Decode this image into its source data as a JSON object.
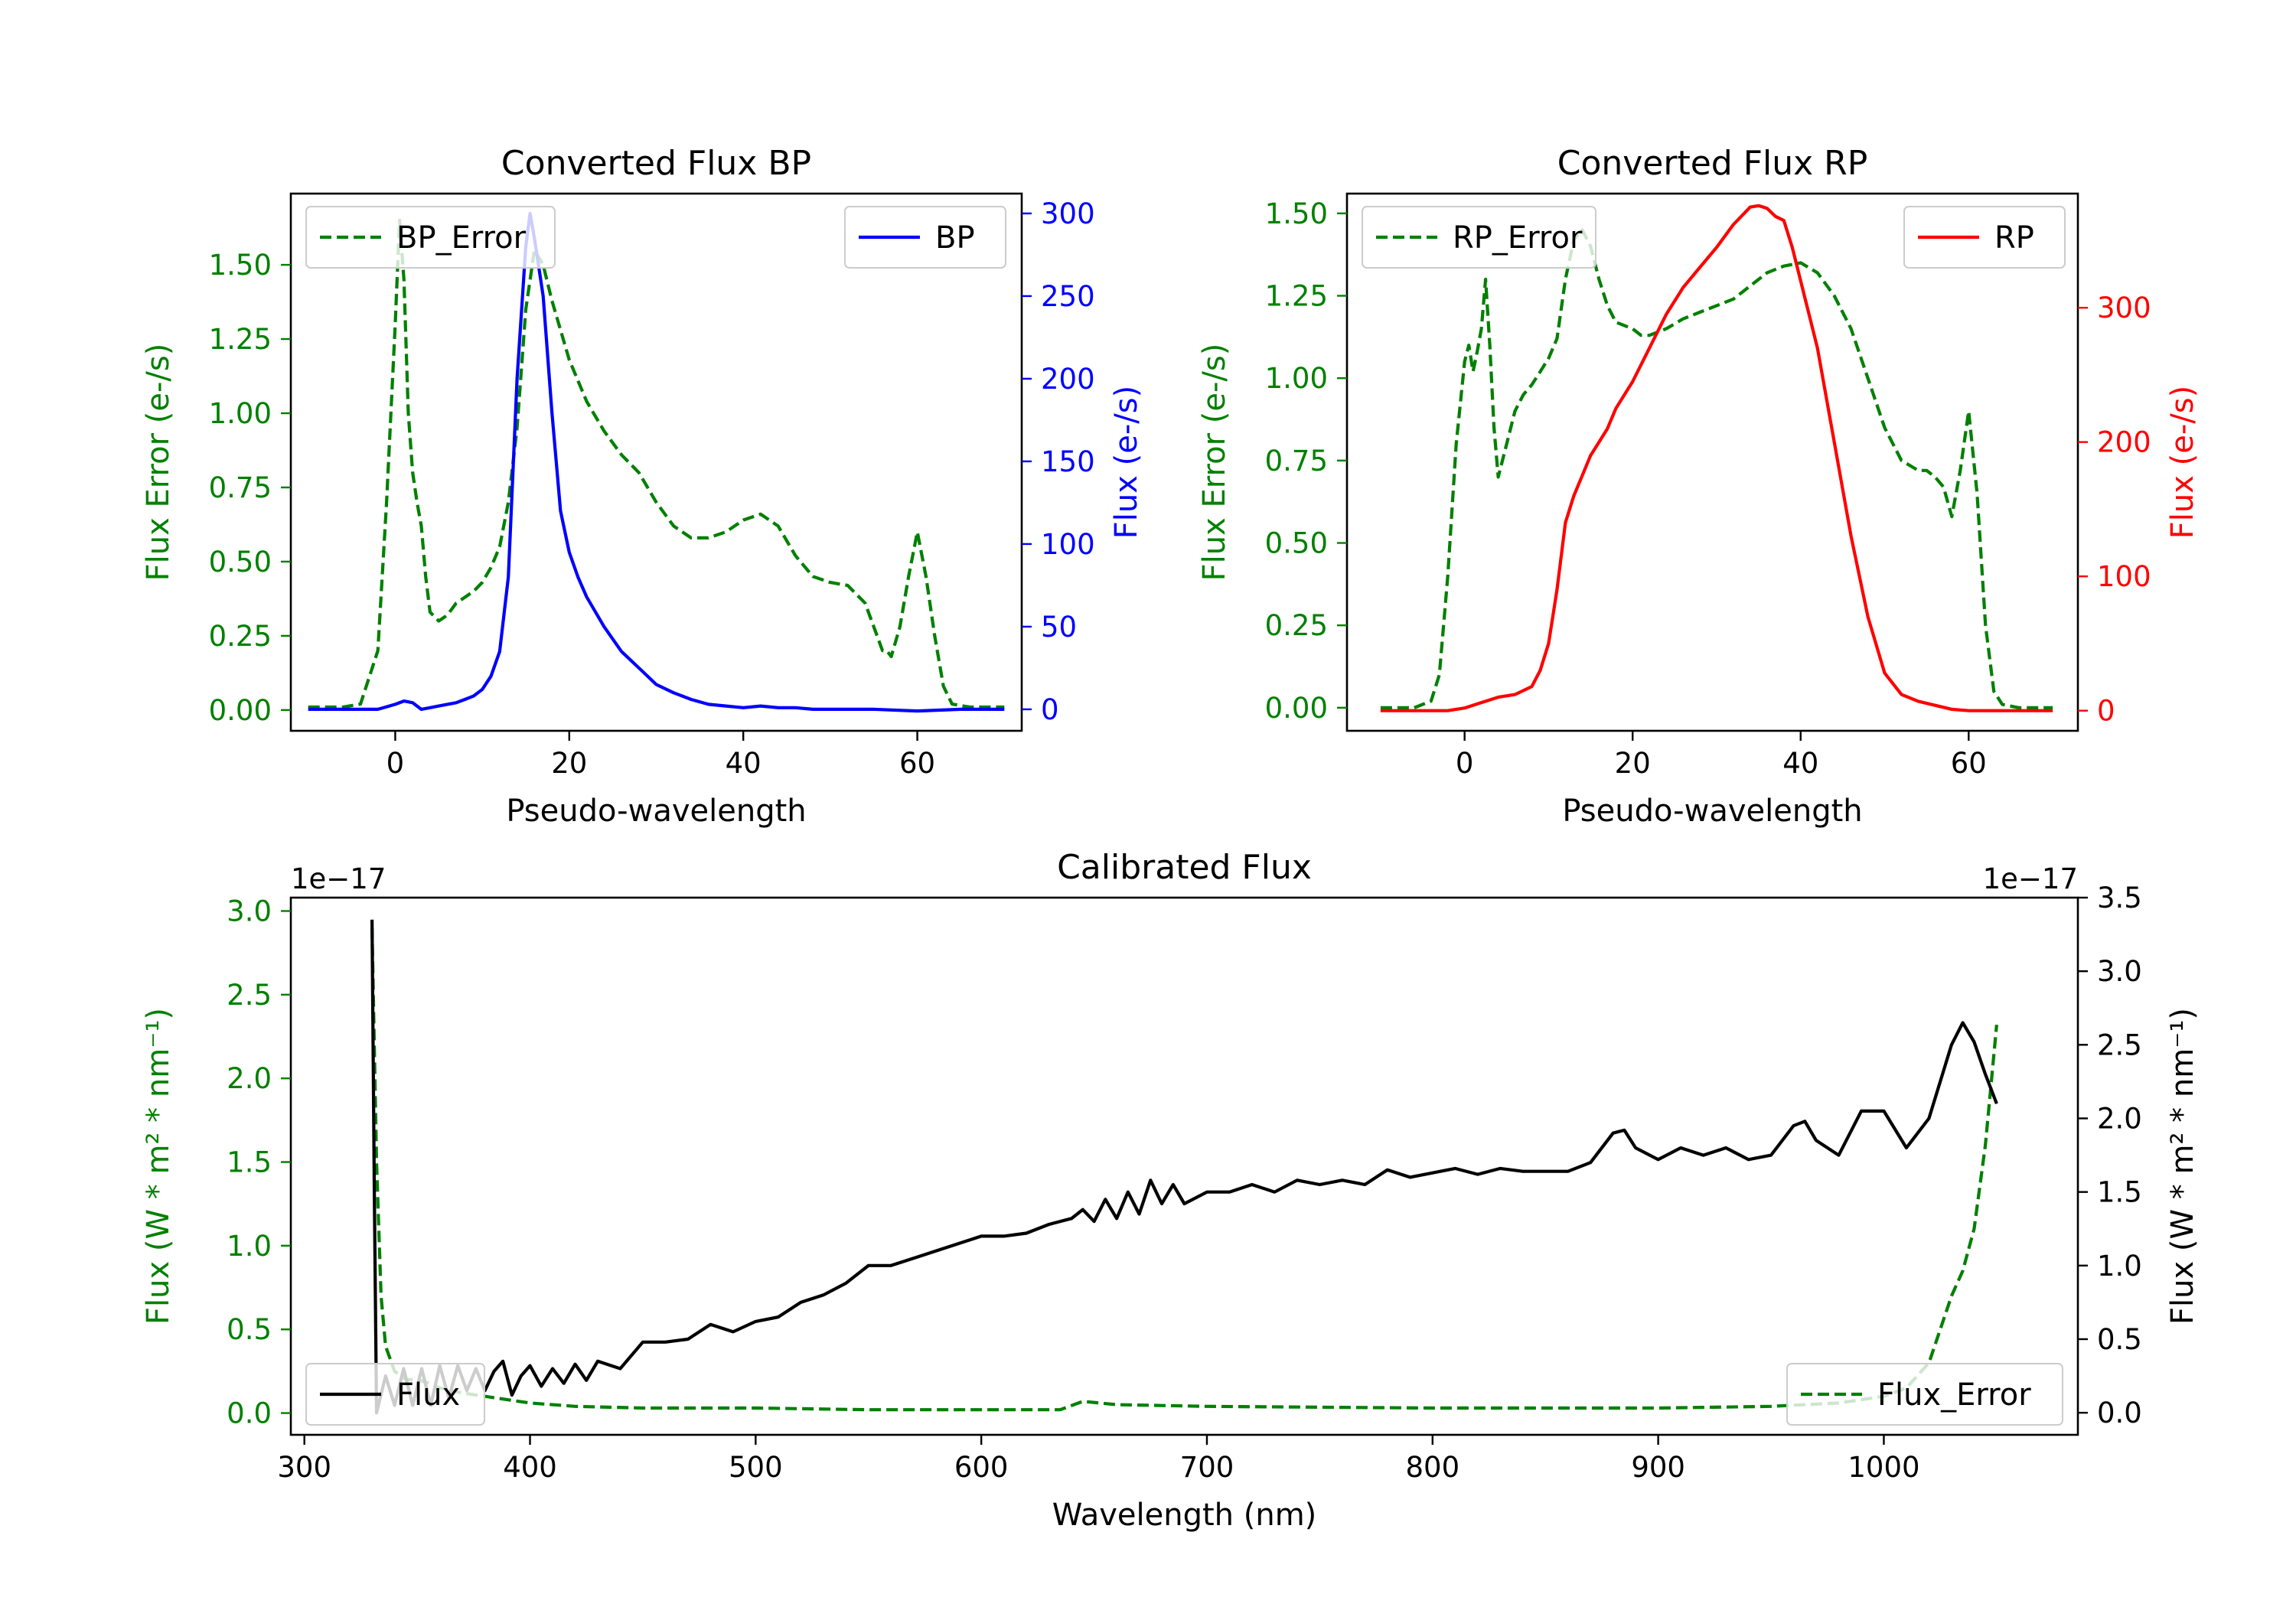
{
  "colors": {
    "green": "#008000",
    "blue": "#0000ff",
    "red": "#ff0000",
    "black": "#000000"
  },
  "chart_data": [
    {
      "id": "bp",
      "type": "line",
      "title": "Converted Flux BP",
      "xlabel": "Pseudo-wavelength",
      "ylabel_left": "Flux Error (e-/s)",
      "ylabel_right": "Flux (e-/s)",
      "xlim": [
        -12,
        72
      ],
      "ylim_left": [
        -0.07,
        1.74
      ],
      "ylim_right": [
        -13,
        312
      ],
      "x_ticks": [
        0,
        20,
        40,
        60
      ],
      "y_ticks_left": [
        "0.00",
        "0.25",
        "0.50",
        "0.75",
        "1.00",
        "1.25",
        "1.50"
      ],
      "y_ticks_right": [
        0,
        50,
        100,
        150,
        200,
        250,
        300
      ],
      "legend_left": {
        "label": "BP_Error",
        "position": "upper-left"
      },
      "legend_right": {
        "label": "BP",
        "position": "upper-right"
      },
      "series": [
        {
          "name": "BP_Error",
          "axis": "left",
          "color": "green",
          "dashed": true,
          "x": [
            -10,
            -6,
            -4,
            -2,
            -1,
            0,
            0.5,
            1,
            1.5,
            2,
            2.5,
            3,
            3.5,
            4,
            5,
            6,
            7,
            8,
            9,
            10,
            11,
            12,
            13,
            14,
            15,
            16,
            17,
            18,
            20,
            22,
            24,
            26,
            28,
            30,
            32,
            34,
            36,
            38,
            40,
            42,
            44,
            46,
            48,
            50,
            52,
            54,
            56,
            56.5,
            57,
            58,
            59,
            60,
            61,
            62,
            63,
            64,
            66,
            68,
            70
          ],
          "y": [
            0.01,
            0.01,
            0.02,
            0.2,
            0.7,
            1.3,
            1.65,
            1.45,
            1.0,
            0.8,
            0.7,
            0.62,
            0.45,
            0.33,
            0.3,
            0.32,
            0.36,
            0.38,
            0.4,
            0.43,
            0.48,
            0.55,
            0.7,
            0.95,
            1.35,
            1.55,
            1.5,
            1.38,
            1.18,
            1.04,
            0.94,
            0.86,
            0.8,
            0.7,
            0.62,
            0.58,
            0.58,
            0.6,
            0.64,
            0.66,
            0.62,
            0.52,
            0.45,
            0.43,
            0.42,
            0.36,
            0.2,
            0.2,
            0.18,
            0.28,
            0.45,
            0.6,
            0.45,
            0.25,
            0.08,
            0.02,
            0.01,
            0.01,
            0.01
          ]
        },
        {
          "name": "BP",
          "axis": "right",
          "color": "blue",
          "dashed": false,
          "x": [
            -10,
            -6,
            -4,
            -2,
            0,
            1,
            2,
            3,
            4,
            5,
            6,
            7,
            8,
            9,
            10,
            11,
            12,
            13,
            14,
            15,
            15.5,
            16,
            17,
            18,
            19,
            20,
            21,
            22,
            24,
            26,
            28,
            30,
            32,
            34,
            36,
            38,
            40,
            42,
            44,
            46,
            48,
            50,
            55,
            60,
            65,
            70
          ],
          "y": [
            0,
            0,
            0,
            0,
            3,
            5,
            4,
            0,
            1,
            2,
            3,
            4,
            6,
            8,
            12,
            20,
            35,
            80,
            200,
            280,
            300,
            285,
            250,
            180,
            120,
            95,
            80,
            68,
            50,
            35,
            25,
            15,
            10,
            6,
            3,
            2,
            1,
            2,
            1,
            1,
            0,
            0,
            0,
            -1,
            0,
            0
          ]
        }
      ]
    },
    {
      "id": "rp",
      "type": "line",
      "title": "Converted Flux RP",
      "xlabel": "Pseudo-wavelength",
      "ylabel_left": "Flux Error (e-/s)",
      "ylabel_right": "Flux (e-/s)",
      "xlim": [
        -14,
        73
      ],
      "ylim_left": [
        -0.07,
        1.56
      ],
      "ylim_right": [
        -15,
        385
      ],
      "x_ticks": [
        0,
        20,
        40,
        60
      ],
      "y_ticks_left": [
        "0.00",
        "0.25",
        "0.50",
        "0.75",
        "1.00",
        "1.25",
        "1.50"
      ],
      "y_ticks_right": [
        0,
        100,
        200,
        300
      ],
      "legend_left": {
        "label": "RP_Error",
        "position": "upper-left"
      },
      "legend_right": {
        "label": "RP",
        "position": "upper-right"
      },
      "series": [
        {
          "name": "RP_Error",
          "axis": "left",
          "color": "green",
          "dashed": true,
          "x": [
            -10,
            -6,
            -4,
            -3,
            -2,
            -1,
            0,
            0.5,
            1,
            1.5,
            2,
            2.5,
            3,
            3.5,
            4,
            5,
            6,
            7,
            8,
            9,
            10,
            11,
            12,
            13,
            14,
            15,
            16,
            17,
            18,
            19,
            20,
            21,
            22,
            24,
            26,
            28,
            30,
            32,
            34,
            36,
            38,
            40,
            42,
            44,
            46,
            48,
            50,
            52,
            54,
            55,
            56,
            57,
            58,
            59,
            60,
            61,
            62,
            63,
            64,
            66,
            68,
            70
          ],
          "y": [
            0,
            0,
            0.02,
            0.1,
            0.4,
            0.8,
            1.05,
            1.1,
            1.02,
            1.08,
            1.15,
            1.3,
            1.1,
            0.85,
            0.7,
            0.8,
            0.9,
            0.95,
            0.98,
            1.02,
            1.06,
            1.12,
            1.3,
            1.42,
            1.45,
            1.4,
            1.3,
            1.22,
            1.17,
            1.16,
            1.15,
            1.13,
            1.13,
            1.15,
            1.18,
            1.2,
            1.22,
            1.24,
            1.28,
            1.32,
            1.34,
            1.35,
            1.32,
            1.25,
            1.15,
            1.0,
            0.85,
            0.75,
            0.72,
            0.72,
            0.7,
            0.67,
            0.58,
            0.72,
            0.9,
            0.65,
            0.25,
            0.05,
            0.01,
            0,
            0,
            0
          ]
        },
        {
          "name": "RP",
          "axis": "right",
          "color": "red",
          "dashed": false,
          "x": [
            -10,
            -6,
            -4,
            -2,
            0,
            2,
            4,
            6,
            8,
            9,
            10,
            11,
            12,
            13,
            14,
            15,
            16,
            17,
            18,
            19,
            20,
            22,
            24,
            26,
            28,
            30,
            32,
            34,
            35,
            36,
            37,
            38,
            39,
            40,
            42,
            44,
            46,
            48,
            50,
            52,
            54,
            56,
            58,
            60,
            65,
            70
          ],
          "y": [
            0,
            0,
            0,
            0,
            2,
            6,
            10,
            12,
            18,
            30,
            50,
            90,
            140,
            160,
            175,
            190,
            200,
            210,
            225,
            235,
            245,
            270,
            295,
            315,
            330,
            345,
            362,
            375,
            376,
            374,
            368,
            365,
            345,
            320,
            270,
            200,
            130,
            70,
            28,
            12,
            7,
            4,
            1,
            0,
            0,
            0
          ]
        }
      ]
    },
    {
      "id": "calibrated",
      "type": "line",
      "title": "Calibrated Flux",
      "xlabel": "Wavelength (nm)",
      "ylabel_left": "Flux (W * m² * nm⁻¹)",
      "ylabel_right": "Flux (W * m² * nm⁻¹)",
      "offset_left": "1e−17",
      "offset_right": "1e−17",
      "xlim": [
        294,
        1086
      ],
      "ylim_left": [
        -0.13,
        3.08
      ],
      "ylim_right": [
        -0.15,
        3.5
      ],
      "x_ticks": [
        300,
        400,
        500,
        600,
        700,
        800,
        900,
        1000
      ],
      "y_ticks_left": [
        "0.0",
        "0.5",
        "1.0",
        "1.5",
        "2.0",
        "2.5",
        "3.0"
      ],
      "y_ticks_right": [
        "0.0",
        "0.5",
        "1.0",
        "1.5",
        "2.0",
        "2.5",
        "3.0",
        "3.5"
      ],
      "legend_left": {
        "label": "Flux",
        "position": "lower-left"
      },
      "legend_right": {
        "label": "Flux_Error",
        "position": "lower-right"
      },
      "series": [
        {
          "name": "Flux_Error",
          "axis": "left",
          "color": "green",
          "dashed": true,
          "x": [
            330,
            332,
            334,
            336,
            340,
            345,
            350,
            355,
            360,
            370,
            380,
            390,
            400,
            420,
            450,
            500,
            550,
            600,
            635,
            645,
            660,
            700,
            800,
            900,
            950,
            980,
            1000,
            1010,
            1020,
            1025,
            1030,
            1035,
            1040,
            1045,
            1050
          ],
          "y": [
            2.9,
            1.5,
            0.7,
            0.4,
            0.25,
            0.2,
            0.2,
            0.18,
            0.15,
            0.12,
            0.1,
            0.08,
            0.06,
            0.04,
            0.03,
            0.03,
            0.02,
            0.02,
            0.02,
            0.07,
            0.05,
            0.04,
            0.03,
            0.03,
            0.04,
            0.06,
            0.1,
            0.15,
            0.3,
            0.5,
            0.7,
            0.85,
            1.1,
            1.6,
            2.32
          ]
        },
        {
          "name": "Flux",
          "axis": "right",
          "color": "black",
          "dashed": false,
          "x": [
            330,
            331,
            332,
            336,
            340,
            344,
            348,
            352,
            356,
            360,
            364,
            368,
            372,
            376,
            380,
            384,
            388,
            392,
            396,
            400,
            405,
            410,
            415,
            420,
            425,
            430,
            440,
            450,
            460,
            470,
            480,
            490,
            500,
            510,
            520,
            530,
            540,
            550,
            560,
            570,
            580,
            590,
            600,
            610,
            620,
            630,
            640,
            645,
            650,
            655,
            660,
            665,
            670,
            675,
            680,
            685,
            690,
            700,
            710,
            720,
            730,
            740,
            750,
            760,
            770,
            780,
            790,
            800,
            810,
            820,
            830,
            840,
            850,
            860,
            870,
            880,
            885,
            890,
            900,
            910,
            920,
            930,
            940,
            950,
            960,
            965,
            970,
            980,
            990,
            1000,
            1010,
            1020,
            1030,
            1035,
            1040,
            1045,
            1050
          ],
          "y": [
            3.35,
            1.5,
            0.0,
            0.25,
            0.05,
            0.3,
            0.05,
            0.3,
            0.05,
            0.32,
            0.1,
            0.32,
            0.15,
            0.3,
            0.15,
            0.28,
            0.35,
            0.12,
            0.25,
            0.32,
            0.18,
            0.3,
            0.2,
            0.33,
            0.22,
            0.35,
            0.3,
            0.48,
            0.48,
            0.5,
            0.6,
            0.55,
            0.62,
            0.65,
            0.75,
            0.8,
            0.88,
            1.0,
            1.0,
            1.05,
            1.1,
            1.15,
            1.2,
            1.2,
            1.22,
            1.28,
            1.32,
            1.38,
            1.3,
            1.45,
            1.32,
            1.5,
            1.35,
            1.58,
            1.42,
            1.55,
            1.42,
            1.5,
            1.5,
            1.55,
            1.5,
            1.58,
            1.55,
            1.58,
            1.55,
            1.65,
            1.6,
            1.63,
            1.66,
            1.62,
            1.66,
            1.64,
            1.64,
            1.64,
            1.7,
            1.9,
            1.92,
            1.8,
            1.72,
            1.8,
            1.75,
            1.8,
            1.72,
            1.75,
            1.95,
            1.98,
            1.85,
            1.75,
            2.05,
            2.05,
            1.8,
            2.0,
            2.5,
            2.65,
            2.52,
            2.3,
            2.1
          ]
        }
      ]
    }
  ]
}
